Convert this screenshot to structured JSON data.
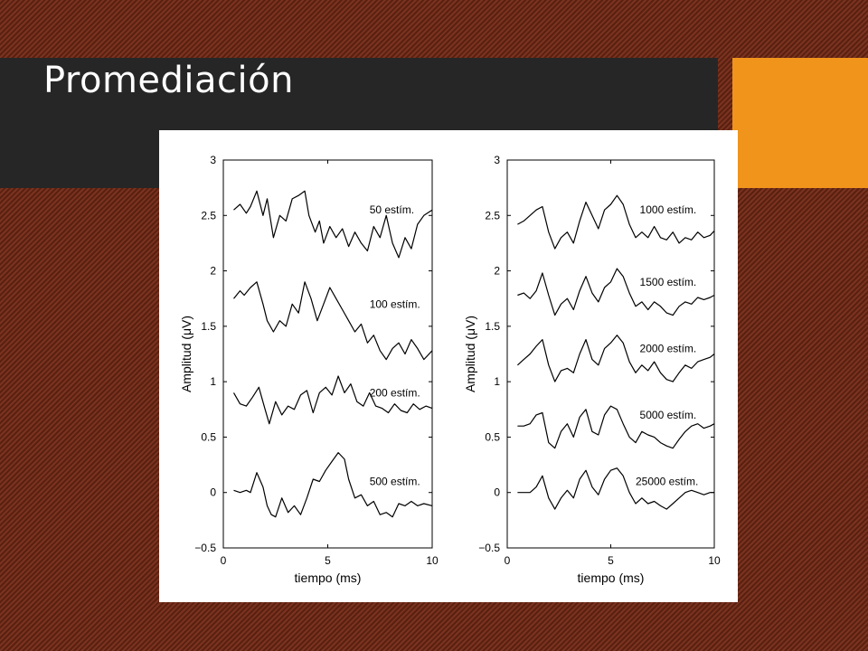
{
  "slide": {
    "title": "Promediación",
    "colors": {
      "title_bar": "#262626",
      "accent": "#f0941c",
      "background": "#6a2a17"
    }
  },
  "chart_data": [
    {
      "type": "line",
      "title": "",
      "xlabel": "tiempo (ms)",
      "ylabel": "Amplitud (μV)",
      "xlim": [
        0,
        10
      ],
      "ylim": [
        -0.5,
        3
      ],
      "xticks": [
        "0",
        "5",
        "10"
      ],
      "yticks": [
        "−0.5",
        "0",
        "0.5",
        "1",
        "1.5",
        "2",
        "2.5",
        "3"
      ],
      "series": [
        {
          "name": "50 estím.",
          "label": "50 estím.",
          "label_x": 7.0,
          "label_y": 2.55,
          "x": [
            0.5,
            0.8,
            1.1,
            1.3,
            1.6,
            1.9,
            2.1,
            2.4,
            2.7,
            3.0,
            3.3,
            3.6,
            3.9,
            4.1,
            4.4,
            4.6,
            4.8,
            5.1,
            5.4,
            5.7,
            6.0,
            6.3,
            6.6,
            6.9,
            7.2,
            7.5,
            7.8,
            8.1,
            8.4,
            8.7,
            9.0,
            9.3,
            9.6,
            10.0
          ],
          "y": [
            2.55,
            2.6,
            2.52,
            2.58,
            2.72,
            2.5,
            2.65,
            2.3,
            2.5,
            2.45,
            2.65,
            2.68,
            2.72,
            2.5,
            2.35,
            2.45,
            2.25,
            2.4,
            2.3,
            2.38,
            2.22,
            2.35,
            2.25,
            2.18,
            2.4,
            2.3,
            2.5,
            2.25,
            2.12,
            2.3,
            2.2,
            2.42,
            2.5,
            2.55
          ]
        },
        {
          "name": "100 estím.",
          "label": "100 estím.",
          "label_x": 7.0,
          "label_y": 1.7,
          "x": [
            0.5,
            0.8,
            1.0,
            1.3,
            1.6,
            1.9,
            2.1,
            2.4,
            2.7,
            3.0,
            3.3,
            3.6,
            3.9,
            4.2,
            4.5,
            4.8,
            5.1,
            5.4,
            5.7,
            6.0,
            6.3,
            6.6,
            6.9,
            7.2,
            7.5,
            7.8,
            8.1,
            8.4,
            8.7,
            9.0,
            9.3,
            9.6,
            10.0
          ],
          "y": [
            1.75,
            1.82,
            1.78,
            1.85,
            1.9,
            1.7,
            1.55,
            1.45,
            1.55,
            1.5,
            1.7,
            1.62,
            1.9,
            1.75,
            1.55,
            1.7,
            1.85,
            1.75,
            1.65,
            1.55,
            1.45,
            1.52,
            1.35,
            1.42,
            1.28,
            1.2,
            1.3,
            1.35,
            1.25,
            1.38,
            1.3,
            1.2,
            1.28
          ]
        },
        {
          "name": "200 estím.",
          "label": "200 estím.",
          "label_x": 7.0,
          "label_y": 0.9,
          "x": [
            0.5,
            0.8,
            1.1,
            1.4,
            1.7,
            2.0,
            2.2,
            2.5,
            2.8,
            3.1,
            3.4,
            3.7,
            4.0,
            4.3,
            4.6,
            4.9,
            5.2,
            5.5,
            5.8,
            6.1,
            6.4,
            6.7,
            7.0,
            7.3,
            7.6,
            7.9,
            8.2,
            8.5,
            8.8,
            9.1,
            9.4,
            9.7,
            10.0
          ],
          "y": [
            0.9,
            0.8,
            0.78,
            0.86,
            0.95,
            0.75,
            0.62,
            0.82,
            0.7,
            0.78,
            0.75,
            0.88,
            0.92,
            0.72,
            0.9,
            0.95,
            0.88,
            1.05,
            0.9,
            0.98,
            0.82,
            0.78,
            0.9,
            0.78,
            0.76,
            0.72,
            0.8,
            0.74,
            0.72,
            0.8,
            0.75,
            0.78,
            0.76
          ]
        },
        {
          "name": "500 estím.",
          "label": "500 estím.",
          "label_x": 7.0,
          "label_y": 0.1,
          "x": [
            0.5,
            0.8,
            1.1,
            1.3,
            1.6,
            1.9,
            2.1,
            2.3,
            2.5,
            2.8,
            3.1,
            3.4,
            3.7,
            4.0,
            4.3,
            4.6,
            4.9,
            5.2,
            5.5,
            5.8,
            6.0,
            6.3,
            6.6,
            6.9,
            7.2,
            7.5,
            7.8,
            8.1,
            8.4,
            8.7,
            9.0,
            9.3,
            9.6,
            10.0
          ],
          "y": [
            0.02,
            0.0,
            0.02,
            0.0,
            0.18,
            0.05,
            -0.12,
            -0.2,
            -0.22,
            -0.05,
            -0.18,
            -0.12,
            -0.2,
            -0.05,
            0.12,
            0.1,
            0.2,
            0.28,
            0.36,
            0.3,
            0.12,
            -0.05,
            -0.02,
            -0.12,
            -0.08,
            -0.2,
            -0.18,
            -0.22,
            -0.1,
            -0.12,
            -0.08,
            -0.12,
            -0.1,
            -0.12
          ]
        }
      ]
    },
    {
      "type": "line",
      "title": "",
      "xlabel": "tiempo (ms)",
      "ylabel": "Amplitud (μV)",
      "xlim": [
        0,
        10
      ],
      "ylim": [
        -0.5,
        3
      ],
      "xticks": [
        "0",
        "5",
        "10"
      ],
      "yticks": [
        "−0.5",
        "0",
        "0.5",
        "1",
        "1.5",
        "2",
        "2.5",
        "3"
      ],
      "series": [
        {
          "name": "1000 estím.",
          "label": "1000 estím.",
          "label_x": 6.4,
          "label_y": 2.55,
          "x": [
            0.5,
            0.8,
            1.1,
            1.4,
            1.7,
            2.0,
            2.3,
            2.6,
            2.9,
            3.2,
            3.5,
            3.8,
            4.1,
            4.4,
            4.7,
            5.0,
            5.3,
            5.6,
            5.9,
            6.2,
            6.5,
            6.8,
            7.1,
            7.4,
            7.7,
            8.0,
            8.3,
            8.6,
            8.9,
            9.2,
            9.5,
            9.8,
            10.0
          ],
          "y": [
            2.42,
            2.45,
            2.5,
            2.55,
            2.58,
            2.35,
            2.2,
            2.3,
            2.35,
            2.25,
            2.45,
            2.62,
            2.5,
            2.38,
            2.55,
            2.6,
            2.68,
            2.6,
            2.42,
            2.3,
            2.35,
            2.3,
            2.4,
            2.3,
            2.28,
            2.35,
            2.25,
            2.3,
            2.28,
            2.35,
            2.3,
            2.32,
            2.36
          ]
        },
        {
          "name": "1500 estím.",
          "label": "1500 estím.",
          "label_x": 6.4,
          "label_y": 1.9,
          "x": [
            0.5,
            0.8,
            1.1,
            1.4,
            1.7,
            2.0,
            2.3,
            2.6,
            2.9,
            3.2,
            3.5,
            3.8,
            4.1,
            4.4,
            4.7,
            5.0,
            5.3,
            5.6,
            5.9,
            6.2,
            6.5,
            6.8,
            7.1,
            7.4,
            7.7,
            8.0,
            8.3,
            8.6,
            8.9,
            9.2,
            9.5,
            9.8,
            10.0
          ],
          "y": [
            1.78,
            1.8,
            1.75,
            1.82,
            1.98,
            1.78,
            1.6,
            1.7,
            1.75,
            1.65,
            1.82,
            1.95,
            1.8,
            1.72,
            1.85,
            1.9,
            2.02,
            1.95,
            1.8,
            1.68,
            1.72,
            1.65,
            1.72,
            1.68,
            1.62,
            1.6,
            1.68,
            1.72,
            1.7,
            1.76,
            1.74,
            1.76,
            1.78
          ]
        },
        {
          "name": "2000 estím.",
          "label": "2000 estím.",
          "label_x": 6.4,
          "label_y": 1.3,
          "x": [
            0.5,
            0.8,
            1.1,
            1.4,
            1.7,
            2.0,
            2.3,
            2.6,
            2.9,
            3.2,
            3.5,
            3.8,
            4.1,
            4.4,
            4.7,
            5.0,
            5.3,
            5.6,
            5.9,
            6.2,
            6.5,
            6.8,
            7.1,
            7.4,
            7.7,
            8.0,
            8.3,
            8.6,
            8.9,
            9.2,
            9.5,
            9.8,
            10.0
          ],
          "y": [
            1.15,
            1.2,
            1.25,
            1.32,
            1.38,
            1.15,
            1.0,
            1.1,
            1.12,
            1.08,
            1.25,
            1.38,
            1.2,
            1.15,
            1.3,
            1.35,
            1.42,
            1.35,
            1.18,
            1.08,
            1.15,
            1.1,
            1.18,
            1.08,
            1.02,
            1.0,
            1.08,
            1.15,
            1.12,
            1.18,
            1.2,
            1.22,
            1.25
          ]
        },
        {
          "name": "5000 estím.",
          "label": "5000 estím.",
          "label_x": 6.4,
          "label_y": 0.7,
          "x": [
            0.5,
            0.8,
            1.1,
            1.4,
            1.7,
            2.0,
            2.3,
            2.6,
            2.9,
            3.2,
            3.5,
            3.8,
            4.1,
            4.4,
            4.7,
            5.0,
            5.3,
            5.6,
            5.9,
            6.2,
            6.5,
            6.8,
            7.1,
            7.4,
            7.7,
            8.0,
            8.3,
            8.6,
            8.9,
            9.2,
            9.5,
            9.8,
            10.0
          ],
          "y": [
            0.6,
            0.6,
            0.62,
            0.7,
            0.72,
            0.45,
            0.4,
            0.55,
            0.62,
            0.5,
            0.68,
            0.75,
            0.55,
            0.52,
            0.7,
            0.78,
            0.75,
            0.62,
            0.5,
            0.45,
            0.55,
            0.52,
            0.5,
            0.45,
            0.42,
            0.4,
            0.48,
            0.55,
            0.6,
            0.62,
            0.58,
            0.6,
            0.62
          ]
        },
        {
          "name": "25000 estím.",
          "label": "25000 estím.",
          "label_x": 6.2,
          "label_y": 0.1,
          "x": [
            0.5,
            0.8,
            1.1,
            1.4,
            1.7,
            2.0,
            2.3,
            2.6,
            2.9,
            3.2,
            3.5,
            3.8,
            4.1,
            4.4,
            4.7,
            5.0,
            5.3,
            5.6,
            5.9,
            6.2,
            6.5,
            6.8,
            7.1,
            7.4,
            7.7,
            8.0,
            8.3,
            8.6,
            8.9,
            9.2,
            9.5,
            9.8,
            10.0
          ],
          "y": [
            0.0,
            0.0,
            0.0,
            0.05,
            0.15,
            -0.05,
            -0.15,
            -0.05,
            0.02,
            -0.05,
            0.12,
            0.2,
            0.05,
            -0.02,
            0.12,
            0.2,
            0.22,
            0.15,
            0.0,
            -0.1,
            -0.05,
            -0.1,
            -0.08,
            -0.12,
            -0.15,
            -0.1,
            -0.05,
            0.0,
            0.02,
            0.0,
            -0.02,
            0.0,
            0.0
          ]
        }
      ]
    }
  ]
}
